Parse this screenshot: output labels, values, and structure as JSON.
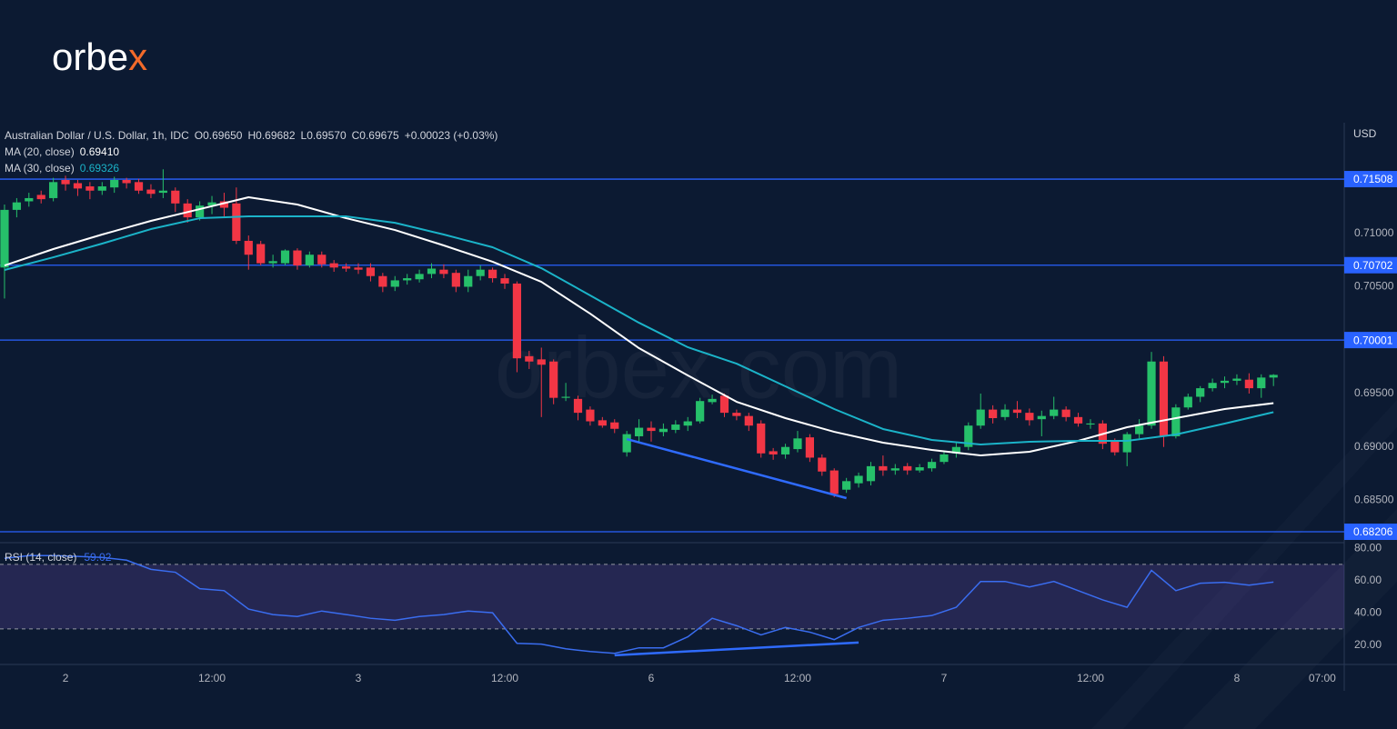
{
  "logo": {
    "main": "orbe",
    "accent": "x"
  },
  "watermark": "orbex.com",
  "chart_data": [
    {
      "type": "candlestick",
      "title": "Australian Dollar / U.S. Dollar, 1h, IDC",
      "ohlc_legend": [
        {
          "key": "O",
          "value": "0.69650"
        },
        {
          "key": "H",
          "value": "0.69682"
        },
        {
          "key": "L",
          "value": "0.69570"
        },
        {
          "key": "C",
          "value": "0.69675"
        }
      ],
      "change": "+0.00023 (+0.03%)",
      "axis_unit": "USD",
      "up_color": "#26c06a",
      "down_color": "#f23645",
      "x": [
        0,
        1,
        2,
        3,
        4,
        5,
        6,
        7,
        8,
        9,
        10,
        11,
        12,
        13,
        14,
        15,
        16,
        17,
        18,
        19,
        20,
        21,
        22,
        23,
        24,
        25,
        26,
        27,
        28,
        29,
        30,
        31,
        32,
        33,
        34,
        35,
        36,
        37,
        38,
        39,
        40,
        41,
        42,
        43,
        44,
        45,
        46,
        47,
        48,
        49,
        50,
        51,
        52,
        53,
        54,
        55,
        56,
        57,
        58,
        59,
        60,
        61,
        62,
        63,
        64,
        65,
        66,
        67,
        68,
        69,
        70,
        71,
        72,
        73,
        74,
        75,
        76,
        77,
        78,
        79,
        80,
        81,
        82,
        83,
        84,
        85,
        86,
        87,
        88,
        89,
        90,
        91,
        92,
        93,
        94,
        95,
        96,
        97,
        98,
        99,
        100,
        101,
        102,
        103,
        104
      ],
      "open": [
        0.7068,
        0.7122,
        0.713,
        0.7136,
        0.7133,
        0.715,
        0.7147,
        0.7144,
        0.714,
        0.7143,
        0.715,
        0.7148,
        0.7141,
        0.7138,
        0.714,
        0.7128,
        0.7115,
        0.7126,
        0.713,
        0.7128,
        0.7093,
        0.709,
        0.7072,
        0.7072,
        0.7084,
        0.707,
        0.708,
        0.7072,
        0.7069,
        0.7068,
        0.7068,
        0.706,
        0.705,
        0.7056,
        0.7057,
        0.7062,
        0.7066,
        0.7063,
        0.705,
        0.706,
        0.7066,
        0.7058,
        0.7053,
        0.6985,
        0.6982,
        0.698,
        0.6946,
        0.6945,
        0.6935,
        0.6925,
        0.6923,
        0.6895,
        0.691,
        0.6918,
        0.6914,
        0.6916,
        0.692,
        0.6924,
        0.6942,
        0.6948,
        0.6932,
        0.6929,
        0.6922,
        0.6896,
        0.6893,
        0.6898,
        0.6909,
        0.689,
        0.6878,
        0.686,
        0.6866,
        0.6868,
        0.6882,
        0.6878,
        0.6882,
        0.6878,
        0.688,
        0.6886,
        0.6894,
        0.69,
        0.692,
        0.6935,
        0.6928,
        0.6935,
        0.6932,
        0.6926,
        0.6929,
        0.6935,
        0.6928,
        0.6921,
        0.6922,
        0.6905,
        0.6895,
        0.6912,
        0.692,
        0.698,
        0.691,
        0.6937,
        0.6947,
        0.6955,
        0.696,
        0.6962,
        0.6963,
        0.6955,
        0.6965
      ],
      "high": [
        0.7127,
        0.7133,
        0.7138,
        0.714,
        0.7152,
        0.7154,
        0.715,
        0.7148,
        0.7148,
        0.7153,
        0.7152,
        0.7151,
        0.7146,
        0.716,
        0.7143,
        0.7132,
        0.713,
        0.7135,
        0.7138,
        0.7143,
        0.7098,
        0.7093,
        0.708,
        0.7085,
        0.7086,
        0.7083,
        0.7083,
        0.7075,
        0.7072,
        0.7072,
        0.7072,
        0.7063,
        0.706,
        0.7062,
        0.7066,
        0.7072,
        0.7071,
        0.7066,
        0.7066,
        0.707,
        0.7068,
        0.7062,
        0.7055,
        0.699,
        0.6993,
        0.6982,
        0.696,
        0.6948,
        0.6938,
        0.6928,
        0.6926,
        0.6915,
        0.6926,
        0.6924,
        0.6922,
        0.6925,
        0.6928,
        0.6946,
        0.6949,
        0.695,
        0.6935,
        0.6932,
        0.6925,
        0.6899,
        0.6903,
        0.6915,
        0.6912,
        0.6893,
        0.688,
        0.6871,
        0.6876,
        0.6886,
        0.6892,
        0.6884,
        0.6885,
        0.6884,
        0.6889,
        0.6896,
        0.6904,
        0.6923,
        0.695,
        0.6939,
        0.694,
        0.6943,
        0.6936,
        0.6934,
        0.6947,
        0.6938,
        0.6932,
        0.6926,
        0.6925,
        0.6908,
        0.6914,
        0.6926,
        0.6989,
        0.6985,
        0.694,
        0.695,
        0.6957,
        0.6964,
        0.6966,
        0.6968,
        0.6969,
        0.6968,
        0.69682
      ],
      "low": [
        0.7039,
        0.7115,
        0.7125,
        0.7128,
        0.713,
        0.714,
        0.7135,
        0.7132,
        0.7136,
        0.7138,
        0.7142,
        0.7137,
        0.7133,
        0.7133,
        0.712,
        0.711,
        0.7112,
        0.7118,
        0.7116,
        0.709,
        0.7066,
        0.707,
        0.7068,
        0.707,
        0.7066,
        0.7068,
        0.7068,
        0.7064,
        0.7064,
        0.7062,
        0.7055,
        0.7045,
        0.7046,
        0.7052,
        0.7054,
        0.7058,
        0.7058,
        0.7045,
        0.7045,
        0.7056,
        0.7054,
        0.7048,
        0.697,
        0.6973,
        0.6928,
        0.694,
        0.6943,
        0.6925,
        0.692,
        0.6918,
        0.6913,
        0.6891,
        0.6905,
        0.6905,
        0.691,
        0.6913,
        0.6915,
        0.6922,
        0.694,
        0.6928,
        0.6925,
        0.6915,
        0.689,
        0.6888,
        0.6889,
        0.6895,
        0.6886,
        0.6873,
        0.6853,
        0.6857,
        0.6862,
        0.6864,
        0.6873,
        0.6874,
        0.6874,
        0.6876,
        0.6877,
        0.6884,
        0.689,
        0.6897,
        0.6917,
        0.6922,
        0.6925,
        0.6927,
        0.692,
        0.691,
        0.6926,
        0.6924,
        0.6919,
        0.6917,
        0.6898,
        0.6892,
        0.6882,
        0.6908,
        0.6917,
        0.69,
        0.6908,
        0.6935,
        0.6942,
        0.6952,
        0.6955,
        0.6958,
        0.695,
        0.6946,
        0.6957
      ],
      "close": [
        0.7122,
        0.7129,
        0.7133,
        0.7132,
        0.7148,
        0.7146,
        0.7142,
        0.714,
        0.7144,
        0.715,
        0.7147,
        0.714,
        0.7137,
        0.714,
        0.7128,
        0.7115,
        0.7126,
        0.7129,
        0.7124,
        0.7093,
        0.708,
        0.7072,
        0.7074,
        0.7084,
        0.707,
        0.708,
        0.7071,
        0.7068,
        0.7067,
        0.7066,
        0.706,
        0.705,
        0.7056,
        0.7058,
        0.7062,
        0.7067,
        0.7062,
        0.705,
        0.706,
        0.7066,
        0.7058,
        0.7053,
        0.6983,
        0.698,
        0.6977,
        0.6946,
        0.6947,
        0.6932,
        0.6924,
        0.692,
        0.6917,
        0.6912,
        0.6918,
        0.6915,
        0.6917,
        0.6921,
        0.6924,
        0.6943,
        0.6945,
        0.6932,
        0.6929,
        0.692,
        0.6894,
        0.6893,
        0.69,
        0.6908,
        0.689,
        0.6877,
        0.6856,
        0.6868,
        0.6873,
        0.6882,
        0.6878,
        0.688,
        0.6878,
        0.6881,
        0.6886,
        0.6893,
        0.69,
        0.692,
        0.6935,
        0.6927,
        0.6935,
        0.6932,
        0.6925,
        0.6929,
        0.6935,
        0.6928,
        0.6922,
        0.6922,
        0.6903,
        0.6895,
        0.6912,
        0.692,
        0.698,
        0.691,
        0.6937,
        0.6947,
        0.6955,
        0.696,
        0.6962,
        0.6964,
        0.6955,
        0.6965,
        0.69675
      ],
      "xlim": [
        -0.37,
        109.8
      ],
      "xticks": [
        {
          "value": 5,
          "label": "2"
        },
        {
          "value": 17,
          "label": "12:00"
        },
        {
          "value": 29,
          "label": "3"
        },
        {
          "value": 41,
          "label": "12:00"
        },
        {
          "value": 53,
          "label": "6"
        },
        {
          "value": 65,
          "label": "12:00"
        },
        {
          "value": 77,
          "label": "7"
        },
        {
          "value": 89,
          "label": "12:00"
        },
        {
          "value": 101,
          "label": "8"
        },
        {
          "value": 108,
          "label": "07:00"
        }
      ],
      "ylim": [
        0.68104,
        0.72036
      ],
      "yticks": [
        {
          "value": 0.71,
          "label": "0.71000"
        },
        {
          "value": 0.705,
          "label": "0.70500"
        },
        {
          "value": 0.695,
          "label": "0.69500"
        },
        {
          "value": 0.69,
          "label": "0.69000"
        },
        {
          "value": 0.685,
          "label": "0.68500"
        }
      ],
      "levels": {
        "color": "#2962ff",
        "values": [
          0.71508,
          0.70702,
          0.70001,
          0.68206
        ]
      },
      "series": [
        {
          "name": "MA (20, close)",
          "legend_value": "0.69410",
          "color": "#ffffff",
          "x": [
            0,
            4,
            8,
            12,
            16,
            20,
            24,
            28,
            32,
            36,
            40,
            44,
            48,
            52,
            56,
            60,
            64,
            68,
            72,
            76,
            80,
            84,
            88,
            92,
            96,
            100,
            104
          ],
          "values": [
            0.70699,
            0.70853,
            0.70989,
            0.71117,
            0.71227,
            0.71338,
            0.7127,
            0.71142,
            0.71031,
            0.70887,
            0.70734,
            0.70546,
            0.70248,
            0.69925,
            0.6967,
            0.69423,
            0.6927,
            0.69142,
            0.6904,
            0.68972,
            0.68921,
            0.68955,
            0.69057,
            0.69185,
            0.6927,
            0.69355,
            0.6941
          ]
        },
        {
          "name": "MA (30, close)",
          "legend_value": "0.69326",
          "color": "#1bb3c8",
          "x": [
            0,
            4,
            8,
            12,
            16,
            20,
            24,
            28,
            32,
            36,
            40,
            44,
            48,
            52,
            56,
            60,
            64,
            68,
            72,
            76,
            80,
            84,
            88,
            92,
            96,
            100,
            104
          ],
          "values": [
            0.70657,
            0.70776,
            0.70904,
            0.7104,
            0.71142,
            0.71159,
            0.71159,
            0.71159,
            0.71099,
            0.70989,
            0.7087,
            0.70674,
            0.70419,
            0.70163,
            0.69934,
            0.6978,
            0.69568,
            0.69355,
            0.69168,
            0.69066,
            0.69023,
            0.69049,
            0.69057,
            0.69057,
            0.69117,
            0.69219,
            0.69326
          ]
        }
      ],
      "trendline": {
        "color": "#2f6bff",
        "x": [
          51,
          69
        ],
        "values": [
          0.69074,
          0.68521
        ]
      }
    },
    {
      "type": "line",
      "title": "RSI (14, close)",
      "color": "#3a6df0",
      "x": [
        0,
        2,
        4,
        6,
        8,
        10,
        12,
        14,
        16,
        18,
        20,
        22,
        24,
        26,
        28,
        30,
        32,
        34,
        36,
        38,
        40,
        42,
        44,
        46,
        48,
        50,
        52,
        54,
        56,
        58,
        60,
        62,
        64,
        66,
        68,
        70,
        72,
        74,
        76,
        78,
        80,
        82,
        84,
        86,
        88,
        90,
        92,
        94,
        96,
        98,
        100,
        102,
        104
      ],
      "values": [
        73.7,
        75.4,
        75.4,
        74.9,
        74.3,
        72.6,
        66.9,
        65.1,
        54.9,
        53.7,
        42.3,
        38.9,
        37.7,
        41.1,
        38.9,
        36.6,
        35.4,
        37.7,
        38.9,
        41.1,
        40.0,
        21.1,
        20.6,
        17.7,
        16.0,
        14.9,
        18.3,
        18.3,
        25.1,
        36.6,
        32.0,
        26.3,
        30.9,
        28.0,
        23.4,
        30.9,
        35.4,
        36.6,
        38.3,
        43.4,
        59.4,
        59.4,
        56.0,
        59.4,
        53.7,
        48.0,
        43.4,
        66.3,
        53.7,
        58.3,
        58.9,
        57.1,
        59.02
      ],
      "ylim": [
        8,
        83.43
      ],
      "yticks": [
        {
          "value": 80,
          "label": "80.00"
        },
        {
          "value": 60,
          "label": "60.00"
        },
        {
          "value": 40,
          "label": "40.00"
        },
        {
          "value": 20,
          "label": "20.00"
        }
      ],
      "band": [
        30,
        70
      ],
      "band_color": "#7e57c2",
      "trendline": {
        "color": "#2f6bff",
        "x": [
          50,
          70
        ],
        "values": [
          13.7,
          21.6
        ]
      }
    }
  ]
}
